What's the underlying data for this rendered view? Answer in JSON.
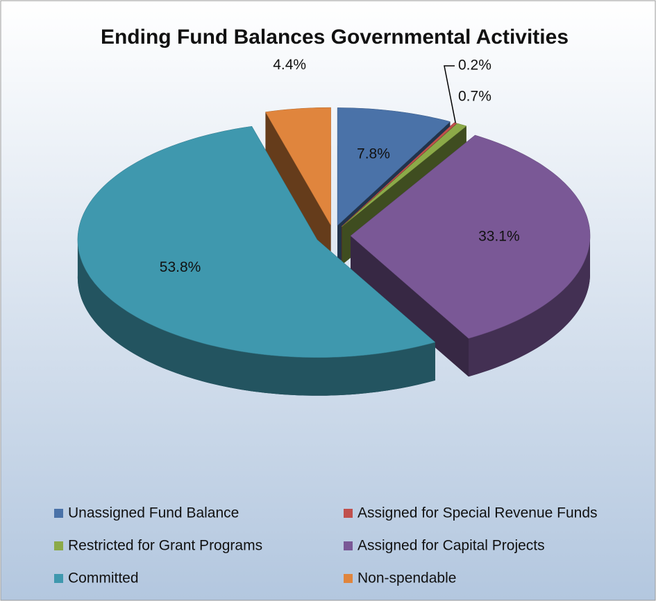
{
  "chart_data": {
    "type": "pie",
    "title": "Ending Fund Balances Governmental Activities",
    "categories": [
      "Unassigned Fund Balance",
      "Assigned for Special Revenue Funds",
      "Restricted for Grant Programs",
      "Assigned for Capital Projects",
      "Committed",
      "Non-spendable"
    ],
    "values": [
      7.8,
      0.2,
      0.7,
      33.1,
      53.8,
      4.4
    ],
    "value_labels": [
      "7.8%",
      "0.2%",
      "0.7%",
      "33.1%",
      "53.8%",
      "4.4%"
    ],
    "colors": [
      "#4a72a8",
      "#c0504d",
      "#8caa48",
      "#7a5896",
      "#3f98ae",
      "#e0853d"
    ],
    "legend": "bottom"
  }
}
